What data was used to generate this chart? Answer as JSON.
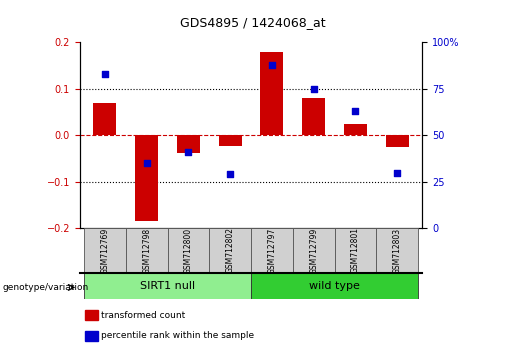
{
  "title": "GDS4895 / 1424068_at",
  "samples": [
    "GSM712769",
    "GSM712798",
    "GSM712800",
    "GSM712802",
    "GSM712797",
    "GSM712799",
    "GSM712801",
    "GSM712803"
  ],
  "groups": [
    {
      "name": "SIRT1 null",
      "indices": [
        0,
        1,
        2,
        3
      ],
      "color": "#90EE90"
    },
    {
      "name": "wild type",
      "indices": [
        4,
        5,
        6,
        7
      ],
      "color": "#32CD32"
    }
  ],
  "transformed_count": [
    0.07,
    -0.185,
    -0.038,
    -0.022,
    0.18,
    0.08,
    0.025,
    -0.025
  ],
  "percentile_rank_pct": [
    83,
    35,
    41,
    29,
    88,
    75,
    63,
    30
  ],
  "bar_color": "#CC0000",
  "dot_color": "#0000CC",
  "ylim_left": [
    -0.2,
    0.2
  ],
  "ylim_right": [
    0,
    100
  ],
  "yticks_left": [
    -0.2,
    -0.1,
    0.0,
    0.1,
    0.2
  ],
  "yticks_right": [
    0,
    25,
    50,
    75,
    100
  ],
  "bar_width": 0.55,
  "dot_size": 22,
  "hline_color": "#CC0000",
  "grid_color": "black",
  "group_label": "genotype/variation",
  "legend_items": [
    {
      "label": "transformed count",
      "color": "#CC0000"
    },
    {
      "label": "percentile rank within the sample",
      "color": "#0000CC"
    }
  ]
}
